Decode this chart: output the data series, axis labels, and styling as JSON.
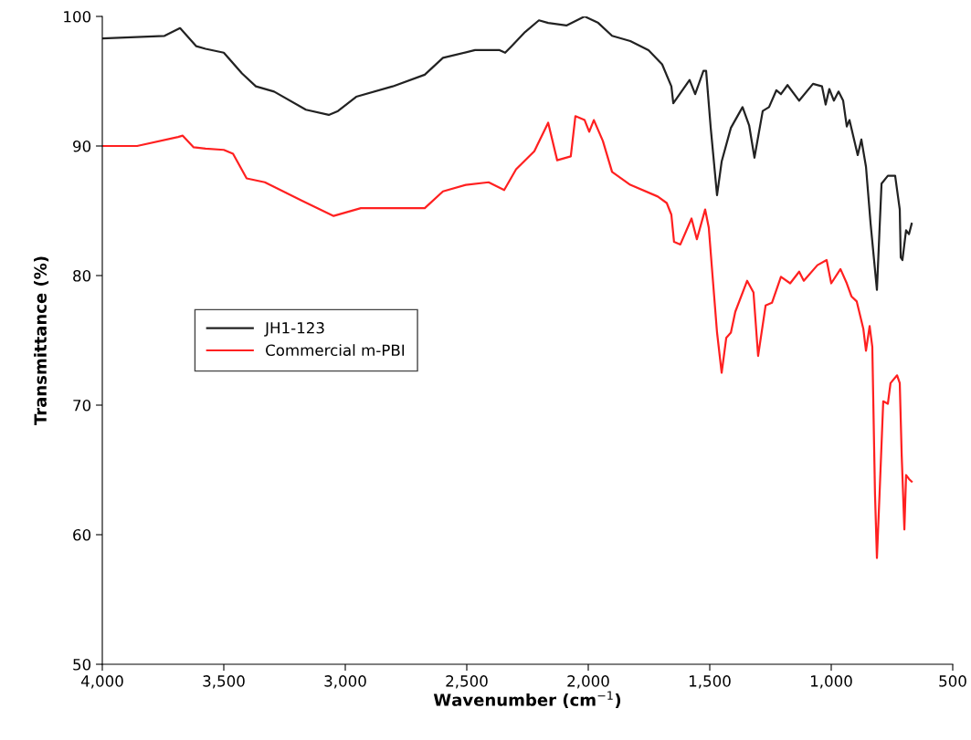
{
  "chart_data": {
    "type": "line",
    "xlabel": "Wavenumber (cm$^{−1}$)",
    "ylabel": "Transmittance (%)",
    "xlim": [
      4000,
      500
    ],
    "ylim": [
      50,
      100
    ],
    "xticks": [
      {
        "value": 4000,
        "label": "4,000"
      },
      {
        "value": 3500,
        "label": "3,500"
      },
      {
        "value": 3000,
        "label": "3,000"
      },
      {
        "value": 2500,
        "label": "2,500"
      },
      {
        "value": 2000,
        "label": "2,000"
      },
      {
        "value": 1500,
        "label": "1,500"
      },
      {
        "value": 1000,
        "label": "1,000"
      },
      500
    ],
    "yticks": [
      50,
      60,
      70,
      80,
      90,
      100
    ],
    "grid": false,
    "legend": "left",
    "marker": "none",
    "line_style": "solid",
    "series": [
      {
        "name": "JH1-123",
        "color": "#222222",
        "x": [
          4000,
          3744,
          3680,
          3613,
          3575,
          3500,
          3425,
          3368,
          3293,
          3162,
          3068,
          3030,
          2955,
          2805,
          2673,
          2598,
          2466,
          2365,
          2342,
          2316,
          2260,
          2203,
          2165,
          2090,
          2015,
          1959,
          1902,
          1827,
          1752,
          1696,
          1658,
          1650,
          1583,
          1560,
          1526,
          1515,
          1496,
          1470,
          1451,
          1413,
          1365,
          1338,
          1316,
          1282,
          1256,
          1226,
          1207,
          1180,
          1132,
          1075,
          1038,
          1023,
          1008,
          989,
          970,
          951,
          936,
          925,
          891,
          876,
          857,
          838,
          812,
          793,
          767,
          737,
          718,
          714,
          707,
          692,
          680,
          669
        ],
        "values": [
          98.3,
          98.5,
          99.1,
          97.7,
          97.5,
          97.2,
          95.6,
          94.6,
          94.2,
          92.8,
          92.4,
          92.7,
          93.8,
          94.6,
          95.5,
          96.8,
          97.4,
          97.4,
          97.2,
          97.7,
          98.8,
          99.7,
          99.5,
          99.3,
          100,
          99.5,
          98.5,
          98.1,
          97.4,
          96.3,
          94.6,
          93.3,
          95.1,
          94.0,
          95.8,
          95.8,
          91.4,
          86.2,
          88.8,
          91.4,
          93.0,
          91.6,
          89.1,
          92.7,
          93.0,
          94.3,
          94.0,
          94.7,
          93.5,
          94.8,
          94.6,
          93.2,
          94.4,
          93.5,
          94.2,
          93.5,
          91.5,
          92.0,
          89.3,
          90.5,
          88.4,
          84.0,
          78.9,
          87.1,
          87.7,
          87.7,
          85.1,
          81.4,
          81.2,
          83.5,
          83.2,
          84.0
        ]
      },
      {
        "name": "Commercial m-PBI",
        "color": "#ff2020",
        "x": [
          4000,
          3857,
          3688,
          3669,
          3624,
          3575,
          3500,
          3462,
          3406,
          3331,
          3180,
          3048,
          2936,
          2842,
          2673,
          2598,
          2504,
          2410,
          2346,
          2297,
          2222,
          2165,
          2128,
          2072,
          2053,
          2015,
          1996,
          1977,
          1940,
          1902,
          1827,
          1714,
          1677,
          1658,
          1647,
          1621,
          1575,
          1553,
          1519,
          1504,
          1489,
          1470,
          1451,
          1432,
          1413,
          1395,
          1346,
          1320,
          1301,
          1270,
          1244,
          1207,
          1169,
          1132,
          1113,
          1057,
          1019,
          1000,
          962,
          936,
          917,
          895,
          868,
          857,
          842,
          831,
          820,
          812,
          801,
          786,
          767,
          756,
          729,
          718,
          710,
          699,
          692,
          680,
          669
        ],
        "values": [
          90.0,
          90.0,
          90.7,
          90.8,
          89.9,
          89.8,
          89.7,
          89.4,
          87.5,
          87.2,
          85.8,
          84.6,
          85.2,
          85.2,
          85.2,
          86.5,
          87.0,
          87.2,
          86.6,
          88.2,
          89.6,
          91.8,
          88.9,
          89.2,
          92.3,
          92.0,
          91.1,
          92.0,
          90.4,
          88.0,
          87.0,
          86.1,
          85.6,
          84.7,
          82.6,
          82.4,
          84.4,
          82.8,
          85.1,
          83.7,
          80.1,
          75.6,
          72.5,
          75.2,
          75.6,
          77.2,
          79.6,
          78.7,
          73.8,
          77.7,
          77.9,
          79.9,
          79.4,
          80.3,
          79.6,
          80.8,
          81.2,
          79.4,
          80.5,
          79.4,
          78.4,
          78.0,
          75.9,
          74.2,
          76.1,
          74.5,
          63.2,
          58.2,
          63.2,
          70.3,
          70.1,
          71.7,
          72.3,
          71.7,
          66.1,
          60.4,
          64.6,
          64.3,
          64.1
        ]
      }
    ]
  }
}
